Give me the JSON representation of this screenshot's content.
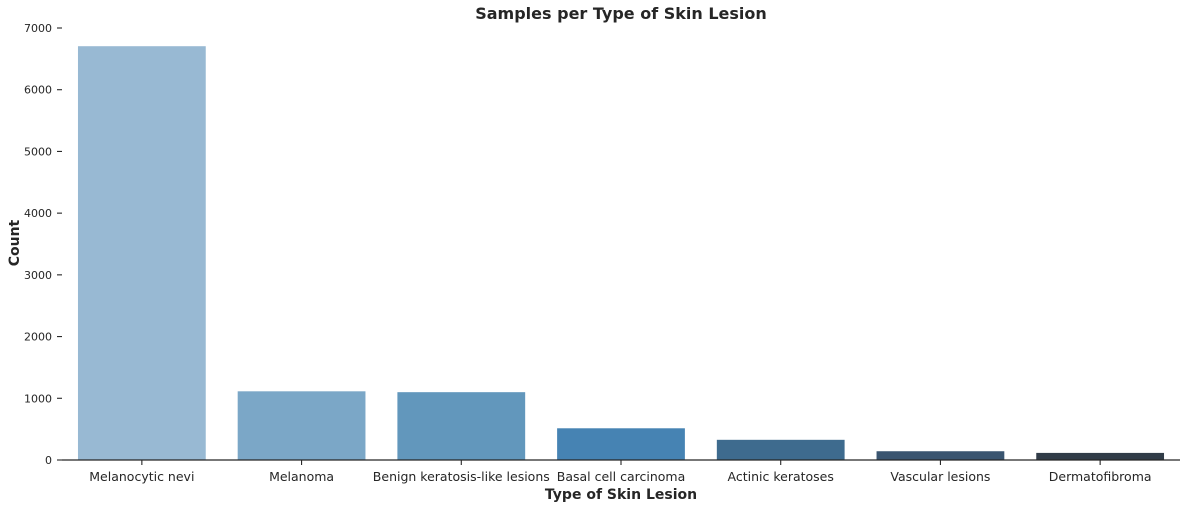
{
  "chart_data": {
    "type": "bar",
    "title": "Samples per Type of Skin Lesion",
    "xlabel": "Type of Skin Lesion",
    "ylabel": "Count",
    "ylim": [
      0,
      7000
    ],
    "yticks": [
      0,
      1000,
      2000,
      3000,
      4000,
      5000,
      6000,
      7000
    ],
    "grid": false,
    "categories": [
      "Melanocytic nevi",
      "Melanoma",
      "Benign keratosis-like lesions",
      "Basal cell carcinoma",
      "Actinic keratoses",
      "Vascular lesions",
      "Dermatofibroma"
    ],
    "values": [
      6705,
      1113,
      1099,
      514,
      327,
      142,
      115
    ],
    "colors": [
      "#98b9d3",
      "#7ba7c7",
      "#6297bc",
      "#4683b3",
      "#3e6b8e",
      "#3a5570",
      "#313c48"
    ]
  }
}
